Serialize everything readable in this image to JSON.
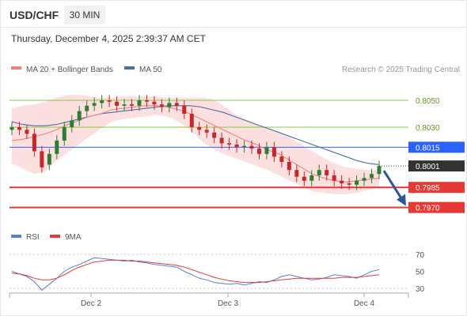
{
  "header": {
    "symbol": "USD/CHF",
    "timeframe": "30 MIN",
    "datetime": "Thursday, December 4, 2025 2:39:37 AM CET"
  },
  "legend": {
    "ma20_label": "MA 20 + Bollinger Bands",
    "ma50_label": "MA 50",
    "ma20_color": "#f08080",
    "ma50_color": "#4a6fa5",
    "credit": "Research © 2025 Trading Central"
  },
  "chart_data": [
    {
      "type": "candlestick",
      "title": "",
      "ylim": [
        0.7958,
        0.8063
      ],
      "levels": [
        {
          "value": 0.805,
          "label": "0.8050",
          "kind": "resistance",
          "color": "#8bc34a"
        },
        {
          "value": 0.803,
          "label": "0.8030",
          "kind": "resistance",
          "color": "#8bc34a"
        },
        {
          "value": 0.8015,
          "label": "0.8015",
          "kind": "pivot",
          "color": "#2962ff"
        },
        {
          "value": 0.8001,
          "label": "0.8001",
          "kind": "last_price",
          "color": "#333333"
        },
        {
          "value": 0.7985,
          "label": "0.7985",
          "kind": "support",
          "color": "#e53935"
        },
        {
          "value": 0.797,
          "label": "0.7970",
          "kind": "support",
          "color": "#e53935"
        }
      ],
      "x_ticks": [
        "Dec 2",
        "Dec 3",
        "Dec 4"
      ],
      "ma20": [
        0.802,
        0.8021,
        0.8023,
        0.8025,
        0.8028,
        0.8032,
        0.8035,
        0.8038,
        0.804,
        0.8043,
        0.8044,
        0.8045,
        0.8046,
        0.8046,
        0.8045,
        0.8043,
        0.804,
        0.8036,
        0.8032,
        0.8028,
        0.8024,
        0.802,
        0.8017,
        0.8013,
        0.801,
        0.8005,
        0.8,
        0.7995,
        0.7992,
        0.799,
        0.7989,
        0.799,
        0.7991,
        0.7992
      ],
      "ma50": [
        0.8034,
        0.8032,
        0.8031,
        0.8031,
        0.8032,
        0.8034,
        0.8036,
        0.8038,
        0.804,
        0.8041,
        0.8042,
        0.8043,
        0.8044,
        0.8045,
        0.8046,
        0.8046,
        0.8046,
        0.8045,
        0.8043,
        0.8041,
        0.8038,
        0.8035,
        0.8032,
        0.8029,
        0.8026,
        0.8023,
        0.802,
        0.8017,
        0.8014,
        0.8011,
        0.8008,
        0.8005,
        0.8003,
        0.8002
      ],
      "bb_upper": [
        0.8044,
        0.8046,
        0.8047,
        0.8049,
        0.8052,
        0.8054,
        0.8054,
        0.8053,
        0.8052,
        0.8052,
        0.8053,
        0.8053,
        0.8053,
        0.8053,
        0.8052,
        0.8052,
        0.8052,
        0.8052,
        0.8051,
        0.8046,
        0.804,
        0.8036,
        0.8032,
        0.8029,
        0.8026,
        0.8022,
        0.8017,
        0.8012,
        0.8007,
        0.8003,
        0.8,
        0.7999,
        0.7998,
        0.7998
      ],
      "bb_lower": [
        0.8003,
        0.7999,
        0.7995,
        0.7997,
        0.8005,
        0.8011,
        0.8017,
        0.8023,
        0.8029,
        0.8034,
        0.8036,
        0.8037,
        0.8038,
        0.8039,
        0.8038,
        0.8034,
        0.8028,
        0.802,
        0.8014,
        0.801,
        0.8007,
        0.8004,
        0.8001,
        0.7998,
        0.7994,
        0.799,
        0.7986,
        0.7982,
        0.7981,
        0.798,
        0.798,
        0.7981,
        0.7983,
        0.7985
      ],
      "candles_close": [
        0.803,
        0.8028,
        0.8025,
        0.8012,
        0.8,
        0.801,
        0.802,
        0.803,
        0.8035,
        0.8042,
        0.8046,
        0.8048,
        0.805,
        0.8049,
        0.8046,
        0.8047,
        0.8046,
        0.805,
        0.8049,
        0.8047,
        0.8045,
        0.8048,
        0.8046,
        0.804,
        0.803,
        0.8028,
        0.8026,
        0.8022,
        0.8018,
        0.8017,
        0.8015,
        0.8016,
        0.8014,
        0.801,
        0.8015,
        0.8008,
        0.8004,
        0.7998,
        0.7993,
        0.799,
        0.7994,
        0.7998,
        0.7994,
        0.799,
        0.7988,
        0.7987,
        0.799,
        0.7992,
        0.7995,
        0.8001
      ],
      "candles_open": [
        0.8028,
        0.803,
        0.8028,
        0.8025,
        0.8012,
        0.8002,
        0.801,
        0.802,
        0.803,
        0.8035,
        0.8042,
        0.8046,
        0.8048,
        0.805,
        0.8049,
        0.8046,
        0.8047,
        0.8046,
        0.805,
        0.8049,
        0.8047,
        0.8045,
        0.8048,
        0.8046,
        0.804,
        0.803,
        0.8028,
        0.8026,
        0.8022,
        0.8018,
        0.8017,
        0.8015,
        0.8016,
        0.8014,
        0.801,
        0.8015,
        0.8008,
        0.8004,
        0.7998,
        0.7993,
        0.799,
        0.7994,
        0.7998,
        0.7994,
        0.799,
        0.7988,
        0.7987,
        0.799,
        0.7992,
        0.7995
      ],
      "forecast": {
        "from": 0.8001,
        "to": 0.797,
        "direction": "down",
        "color": "#2b5797"
      }
    },
    {
      "type": "line",
      "title": "",
      "ylim": [
        20,
        80
      ],
      "y_ticks": [
        70,
        50,
        30
      ],
      "grid_levels": [
        70,
        30
      ],
      "series": [
        {
          "name": "RSI",
          "color": "#5b7fd6",
          "values": [
            50,
            47,
            44,
            38,
            28,
            35,
            42,
            50,
            55,
            58,
            62,
            66,
            65,
            64,
            63,
            62,
            63,
            61,
            60,
            58,
            57,
            56,
            55,
            50,
            46,
            42,
            40,
            37,
            36,
            35,
            36,
            34,
            36,
            38,
            37,
            40,
            44,
            46,
            44,
            42,
            40,
            41,
            43,
            46,
            45,
            44,
            42,
            46,
            50,
            52
          ]
        },
        {
          "name": "9MA",
          "color": "#e53935",
          "values": [
            48,
            47,
            45,
            42,
            40,
            40,
            42,
            46,
            51,
            55,
            58,
            61,
            62,
            63,
            63,
            63,
            62,
            62,
            61,
            60,
            59,
            58,
            57,
            55,
            52,
            49,
            46,
            43,
            41,
            39,
            38,
            37,
            37,
            37,
            38,
            39,
            40,
            41,
            42,
            42,
            42,
            42,
            42,
            42,
            43,
            43,
            43,
            44,
            45,
            46
          ]
        }
      ]
    }
  ],
  "rsi_legend": {
    "rsi_label": "RSI",
    "ma_label": "9MA"
  }
}
